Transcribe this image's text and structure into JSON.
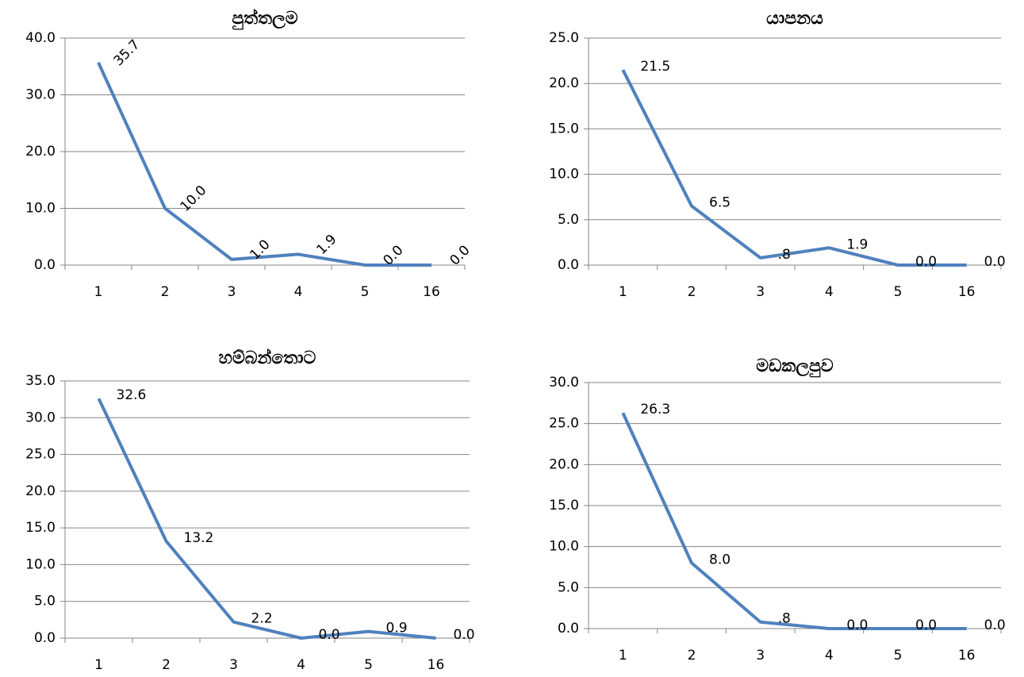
{
  "chart_data": [
    {
      "type": "line",
      "title": "පුත්තලම",
      "categories": [
        "1",
        "2",
        "3",
        "4",
        "5",
        "16"
      ],
      "values": [
        35.7,
        10.0,
        1.0,
        1.9,
        0.0,
        0.0
      ],
      "value_labels": [
        "35.7",
        "10.0",
        "1.0",
        "1.9",
        "0.0",
        "0.0"
      ],
      "label_rotation": -45,
      "color": "#4f81bd",
      "grid": true,
      "ylim": [
        0,
        40
      ],
      "yticks": [
        {
          "value": 0,
          "label": "0.0"
        },
        {
          "value": 10,
          "label": "10.0"
        },
        {
          "value": 20,
          "label": "20.0"
        },
        {
          "value": 30,
          "label": "30.0"
        },
        {
          "value": 40,
          "label": "40.0"
        }
      ]
    },
    {
      "type": "line",
      "title": "යාපනය",
      "categories": [
        "1",
        "2",
        "3",
        "4",
        "5",
        "16"
      ],
      "values": [
        21.5,
        6.5,
        0.8,
        1.9,
        0.0,
        0.0
      ],
      "value_labels": [
        "21.5",
        "6.5",
        ".8",
        "1.9",
        "0.0",
        "0.0"
      ],
      "color": "#4f81bd",
      "grid": true,
      "ylim": [
        0,
        25
      ],
      "yticks": [
        {
          "value": 0,
          "label": "0.0"
        },
        {
          "value": 5,
          "label": "5.0"
        },
        {
          "value": 10,
          "label": "10.0"
        },
        {
          "value": 15,
          "label": "15.0"
        },
        {
          "value": 20,
          "label": "20.0"
        },
        {
          "value": 25,
          "label": "25.0"
        }
      ]
    },
    {
      "type": "line",
      "title": "හම්බන්තොට",
      "categories": [
        "1",
        "2",
        "3",
        "4",
        "5",
        "16"
      ],
      "values": [
        32.6,
        13.2,
        2.2,
        0.0,
        0.9,
        0.0
      ],
      "value_labels": [
        "32.6",
        "13.2",
        "2.2",
        "0.0",
        "0.9",
        "0.0"
      ],
      "color": "#4f81bd",
      "grid": true,
      "ylim": [
        0,
        35
      ],
      "yticks": [
        {
          "value": 0,
          "label": "0.0"
        },
        {
          "value": 5,
          "label": "5.0"
        },
        {
          "value": 10,
          "label": "10.0"
        },
        {
          "value": 15,
          "label": "15.0"
        },
        {
          "value": 20,
          "label": "20.0"
        },
        {
          "value": 25,
          "label": "25.0"
        },
        {
          "value": 30,
          "label": "30.0"
        },
        {
          "value": 35,
          "label": "35.0"
        }
      ]
    },
    {
      "type": "line",
      "title": "මඩකලපුව",
      "categories": [
        "1",
        "2",
        "3",
        "4",
        "5",
        "16"
      ],
      "values": [
        26.3,
        8.0,
        0.8,
        0.0,
        0.0,
        0.0
      ],
      "value_labels": [
        "26.3",
        "8.0",
        ".8",
        "0.0",
        "0.0",
        "0.0"
      ],
      "color": "#4f81bd",
      "grid": true,
      "ylim": [
        0,
        30
      ],
      "yticks": [
        {
          "value": 0,
          "label": "0.0"
        },
        {
          "value": 5,
          "label": "5.0"
        },
        {
          "value": 10,
          "label": "10.0"
        },
        {
          "value": 15,
          "label": "15.0"
        },
        {
          "value": 20,
          "label": "20.0"
        },
        {
          "value": 25,
          "label": "25.0"
        },
        {
          "value": 30,
          "label": "30.0"
        }
      ]
    }
  ]
}
